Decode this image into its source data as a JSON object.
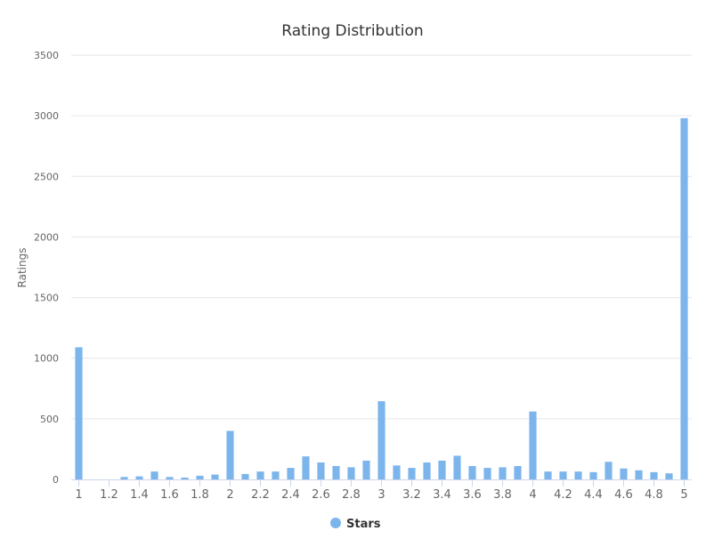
{
  "chart_data": {
    "type": "bar",
    "title": "Rating Distribution",
    "xlabel": "",
    "ylabel": "Ratings",
    "ylim": [
      0,
      3500
    ],
    "yticks": [
      0,
      500,
      1000,
      1500,
      2000,
      2500,
      3000,
      3500
    ],
    "grid": true,
    "legend_position": "bottom-center",
    "bar_color": "#7cb5ec",
    "x_tick_labels": [
      "1",
      "1.2",
      "1.4",
      "1.6",
      "1.8",
      "2",
      "2.2",
      "2.4",
      "2.6",
      "2.8",
      "3",
      "3.2",
      "3.4",
      "3.6",
      "3.8",
      "4",
      "4.2",
      "4.4",
      "4.6",
      "4.8",
      "5"
    ],
    "series": [
      {
        "name": "Stars",
        "categories": [
          "1",
          "1.1",
          "1.2",
          "1.3",
          "1.4",
          "1.5",
          "1.6",
          "1.7",
          "1.8",
          "1.9",
          "2",
          "2.1",
          "2.2",
          "2.3",
          "2.4",
          "2.5",
          "2.6",
          "2.7",
          "2.8",
          "2.9",
          "3",
          "3.1",
          "3.2",
          "3.3",
          "3.4",
          "3.5",
          "3.6",
          "3.7",
          "3.8",
          "3.9",
          "4",
          "4.1",
          "4.2",
          "4.3",
          "4.4",
          "4.5",
          "4.6",
          "4.7",
          "4.8",
          "4.9",
          "5"
        ],
        "values": [
          1090,
          0,
          0,
          20,
          25,
          65,
          20,
          15,
          30,
          40,
          400,
          45,
          65,
          65,
          95,
          190,
          140,
          110,
          100,
          155,
          645,
          115,
          95,
          140,
          155,
          195,
          110,
          95,
          100,
          110,
          560,
          65,
          65,
          65,
          60,
          145,
          90,
          75,
          60,
          50,
          2980
        ]
      }
    ]
  }
}
